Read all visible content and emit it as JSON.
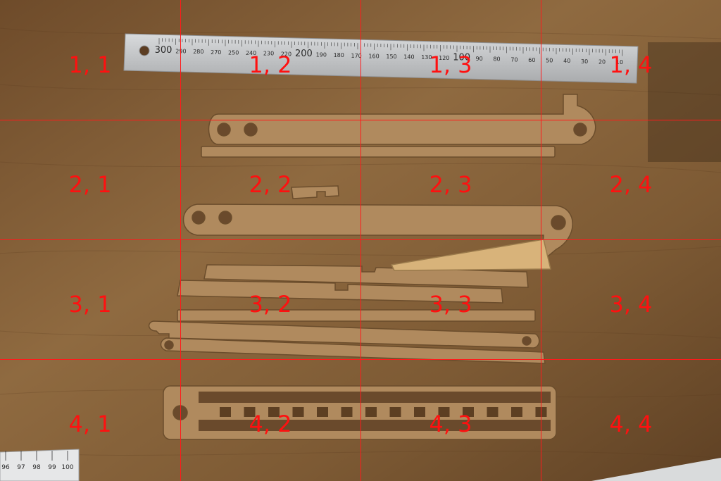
{
  "grid": {
    "line_color": "#ff1a1a",
    "label_color": "#ff1010",
    "rows": 4,
    "cols": 4,
    "labels": [
      [
        "1, 1",
        "1, 2",
        "1, 3",
        "1, 4"
      ],
      [
        "2, 1",
        "2, 2",
        "2, 3",
        "2, 4"
      ],
      [
        "3, 1",
        "3, 2",
        "3, 3",
        "3, 4"
      ],
      [
        "4, 1",
        "4, 2",
        "4, 3",
        "4, 4"
      ]
    ]
  },
  "ruler_top": {
    "tick_labels": [
      "300",
      "290",
      "280",
      "270",
      "250",
      "240",
      "230",
      "220",
      "200",
      "190",
      "180",
      "170",
      "160",
      "150",
      "140",
      "130",
      "120",
      "100",
      "90",
      "80",
      "70",
      "60",
      "50",
      "40",
      "30",
      "20",
      "10"
    ]
  },
  "ruler_bottom": {
    "tick_labels": [
      "96",
      "97",
      "98",
      "99",
      "100"
    ]
  },
  "colors": {
    "wood": "#8a6238",
    "mdf": "#b08a5e",
    "steel": "#c9cbcd"
  }
}
